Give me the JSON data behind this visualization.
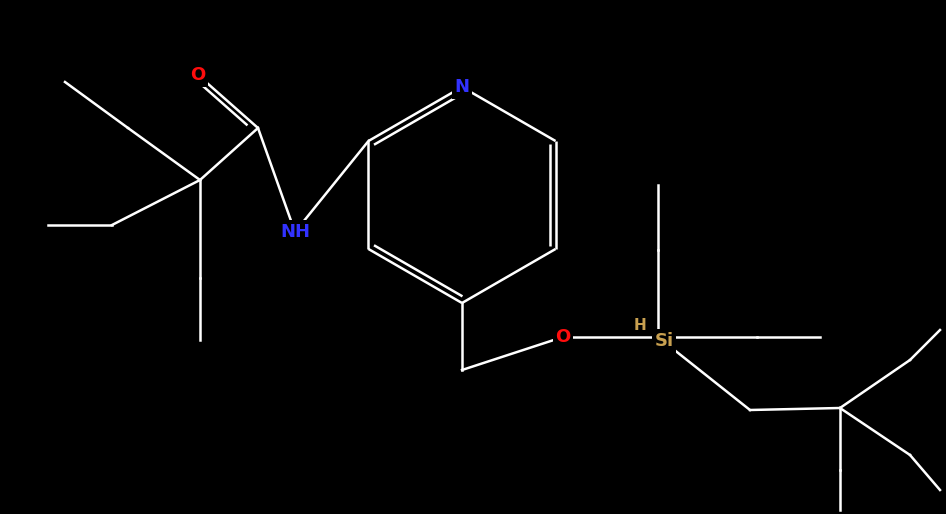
{
  "background_color": "#000000",
  "bond_color": "#ffffff",
  "figsize": [
    9.46,
    5.14
  ],
  "dpi": 100,
  "lw": 1.8,
  "fs": 13,
  "atom_labels": [
    {
      "symbol": "N",
      "color": "#3232ff"
    },
    {
      "symbol": "NH",
      "color": "#3232ff"
    },
    {
      "symbol": "O",
      "color": "#ff0d0d"
    },
    {
      "symbol": "O",
      "color": "#ff0d0d"
    },
    {
      "symbol": "H",
      "color": "#c8a050"
    },
    {
      "symbol": "Si",
      "color": "#c8a050"
    }
  ]
}
